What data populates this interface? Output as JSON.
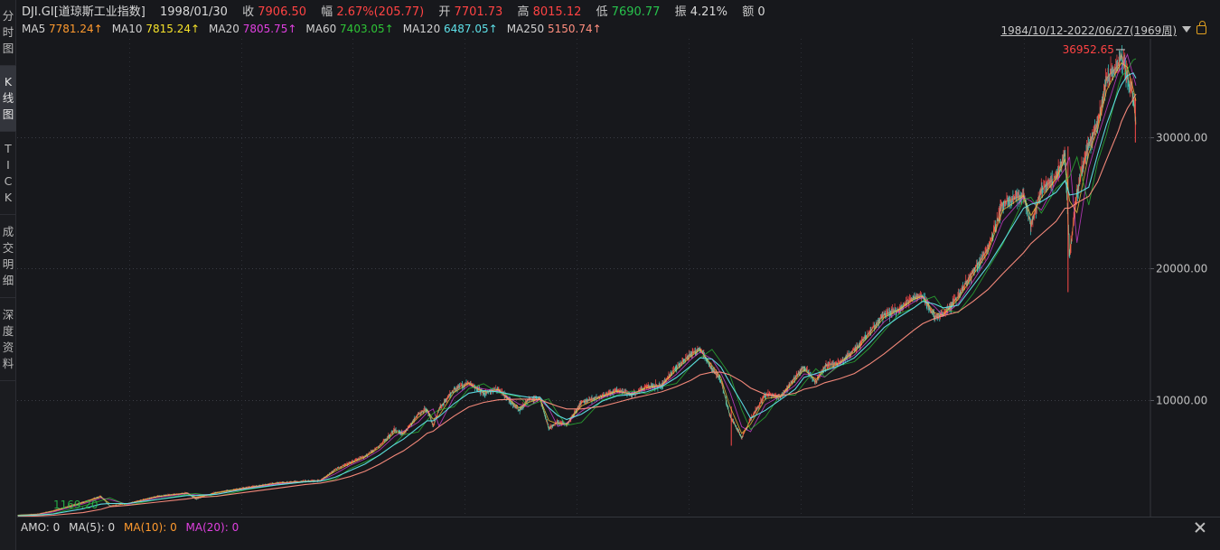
{
  "sidebar": {
    "tabs": [
      {
        "id": "fenshi",
        "chars": [
          "分",
          "时",
          "图"
        ],
        "active": false
      },
      {
        "id": "kline",
        "chars": [
          "K",
          "线",
          "图"
        ],
        "active": true
      },
      {
        "id": "tick",
        "chars": [
          "T",
          "I",
          "C",
          "K"
        ],
        "active": false
      },
      {
        "id": "deals",
        "chars": [
          "成",
          "交",
          "明",
          "细"
        ],
        "active": false
      },
      {
        "id": "depth",
        "chars": [
          "深",
          "度",
          "资",
          "料"
        ],
        "active": false
      }
    ]
  },
  "header": {
    "symbol": "DJI.GI[道琼斯工业指数]",
    "date": "1998/01/30",
    "close_label": "收",
    "close_value": "7906.50",
    "change_label": "幅",
    "change_value": "2.67%(205.77)",
    "open_label": "开",
    "open_value": "7701.73",
    "high_label": "高",
    "high_value": "8015.12",
    "low_label": "低",
    "low_value": "7690.77",
    "amp_label": "振",
    "amp_value": "4.21%",
    "amount_label": "额",
    "amount_value": "0"
  },
  "ma_line": [
    {
      "label": "MA5",
      "value": "7781.24↑",
      "color": "#ff9a2e"
    },
    {
      "label": "MA10",
      "value": "7815.24↑",
      "color": "#f5e12a"
    },
    {
      "label": "MA20",
      "value": "7805.75↑",
      "color": "#e040e0"
    },
    {
      "label": "MA60",
      "value": "7403.05↑",
      "color": "#2ec436"
    },
    {
      "label": "MA120",
      "value": "6487.05↑",
      "color": "#5ee0e8"
    },
    {
      "label": "MA250",
      "value": "5150.74↑",
      "color": "#ff8e7e"
    }
  ],
  "range_label": "1984/10/12-2022/06/27(1969周)",
  "amo": {
    "amo": "AMO: 0",
    "ma5": "MA(5): 0",
    "ma10": "MA(10): 0",
    "ma20": "MA(20): 0",
    "ma10_color": "#ff9a2e",
    "ma20_color": "#e040e0"
  },
  "chart_data": {
    "type": "line",
    "title": "",
    "xlabel": "",
    "ylabel": "",
    "x_range": [
      "1984/10/12",
      "2022/06/27"
    ],
    "ylim": [
      1100,
      37500
    ],
    "y_ticks": [
      10000,
      20000,
      30000
    ],
    "y_tick_labels": [
      "10000.00",
      "20000.00",
      "30000.00"
    ],
    "grid": true,
    "annotations": [
      {
        "text": "36952.65",
        "year": 2022.0,
        "value": 36952.65
      },
      {
        "text": "1169.20",
        "year": 1984.9,
        "value": 1169.2
      }
    ],
    "x": [
      1984.8,
      1985.5,
      1986.0,
      1987.0,
      1987.6,
      1987.9,
      1988.5,
      1989.5,
      1990.5,
      1990.8,
      1991.5,
      1992.5,
      1993.5,
      1994.5,
      1995.0,
      1995.5,
      1996.0,
      1996.5,
      1997.0,
      1997.5,
      1997.8,
      1998.3,
      1998.6,
      1998.8,
      1999.0,
      1999.5,
      2000.0,
      2000.5,
      2001.0,
      2001.7,
      2002.0,
      2002.4,
      2002.7,
      2003.0,
      2003.3,
      2003.8,
      2004.5,
      2005.0,
      2005.5,
      2006.0,
      2006.5,
      2007.0,
      2007.5,
      2007.8,
      2008.2,
      2008.5,
      2008.8,
      2009.2,
      2009.5,
      2010.0,
      2010.5,
      2011.0,
      2011.3,
      2011.7,
      2012.0,
      2012.5,
      2013.0,
      2013.5,
      2014.0,
      2014.5,
      2015.0,
      2015.3,
      2015.7,
      2016.0,
      2016.5,
      2017.0,
      2017.5,
      2018.0,
      2018.7,
      2018.95,
      2019.3,
      2019.8,
      2020.1,
      2020.25,
      2020.5,
      2020.9,
      2021.2,
      2021.5,
      2021.9,
      2022.0,
      2022.2,
      2022.4,
      2022.49
    ],
    "series": [
      {
        "name": "",
        "color": "#ffc24a",
        "values": [
          1200,
          1300,
          1550,
          2200,
          2650,
          1900,
          2100,
          2650,
          2900,
          2450,
          2950,
          3300,
          3650,
          3800,
          3850,
          4700,
          5200,
          5700,
          6500,
          7700,
          7400,
          8900,
          9300,
          8000,
          9300,
          10800,
          11300,
          10500,
          10800,
          9200,
          10000,
          10100,
          7800,
          8300,
          8100,
          9800,
          10300,
          10700,
          10400,
          11000,
          11100,
          12500,
          13500,
          13900,
          12300,
          11500,
          8800,
          7100,
          8500,
          10400,
          10200,
          11700,
          12500,
          11300,
          12600,
          12800,
          13800,
          15100,
          16500,
          16900,
          17800,
          17900,
          16300,
          16500,
          17900,
          19800,
          21500,
          25000,
          25600,
          23300,
          26000,
          27000,
          28800,
          21000,
          25800,
          29500,
          31000,
          34500,
          35500,
          36300,
          34700,
          33000,
          31000
        ]
      },
      {
        "name": "",
        "color": "#5ee0e8",
        "values": [
          1150,
          1220,
          1300,
          1700,
          2050,
          2100,
          2100,
          2400,
          2700,
          2700,
          2800,
          3200,
          3500,
          3750,
          3800,
          4100,
          4600,
          5100,
          5800,
          6600,
          7000,
          7900,
          8400,
          8400,
          8700,
          9700,
          10500,
          10700,
          10600,
          10300,
          10200,
          10200,
          9400,
          8800,
          8500,
          8900,
          9900,
          10300,
          10400,
          10600,
          11000,
          11700,
          12600,
          13200,
          13100,
          12500,
          11300,
          9800,
          8600,
          9200,
          10000,
          10800,
          11700,
          12000,
          12200,
          12600,
          13200,
          14300,
          15500,
          16300,
          17000,
          17500,
          17300,
          17000,
          17200,
          18700,
          20200,
          22000,
          24600,
          24900,
          25100,
          25800,
          26700,
          25600,
          25700,
          26200,
          28700,
          31000,
          33500,
          34000,
          34700,
          34900,
          34500
        ]
      },
      {
        "name": "",
        "color": "#ff8e7e",
        "values": [
          1100,
          1150,
          1200,
          1400,
          1650,
          1850,
          1950,
          2200,
          2450,
          2550,
          2650,
          2950,
          3250,
          3550,
          3650,
          3850,
          4150,
          4550,
          5100,
          5750,
          6100,
          6900,
          7450,
          7600,
          7950,
          8750,
          9450,
          9800,
          10000,
          10050,
          10050,
          10000,
          9750,
          9500,
          9300,
          9300,
          9500,
          9800,
          10100,
          10350,
          10600,
          11000,
          11500,
          11900,
          12100,
          12100,
          11900,
          11400,
          10900,
          10400,
          10300,
          10500,
          10800,
          11000,
          11300,
          11600,
          12000,
          12700,
          13500,
          14400,
          15300,
          15800,
          16200,
          16400,
          16700,
          17500,
          18400,
          19600,
          21200,
          21900,
          22600,
          23600,
          24600,
          24600,
          25000,
          25500,
          26600,
          28300,
          30500,
          31200,
          32200,
          32900,
          33300
        ]
      }
    ]
  }
}
